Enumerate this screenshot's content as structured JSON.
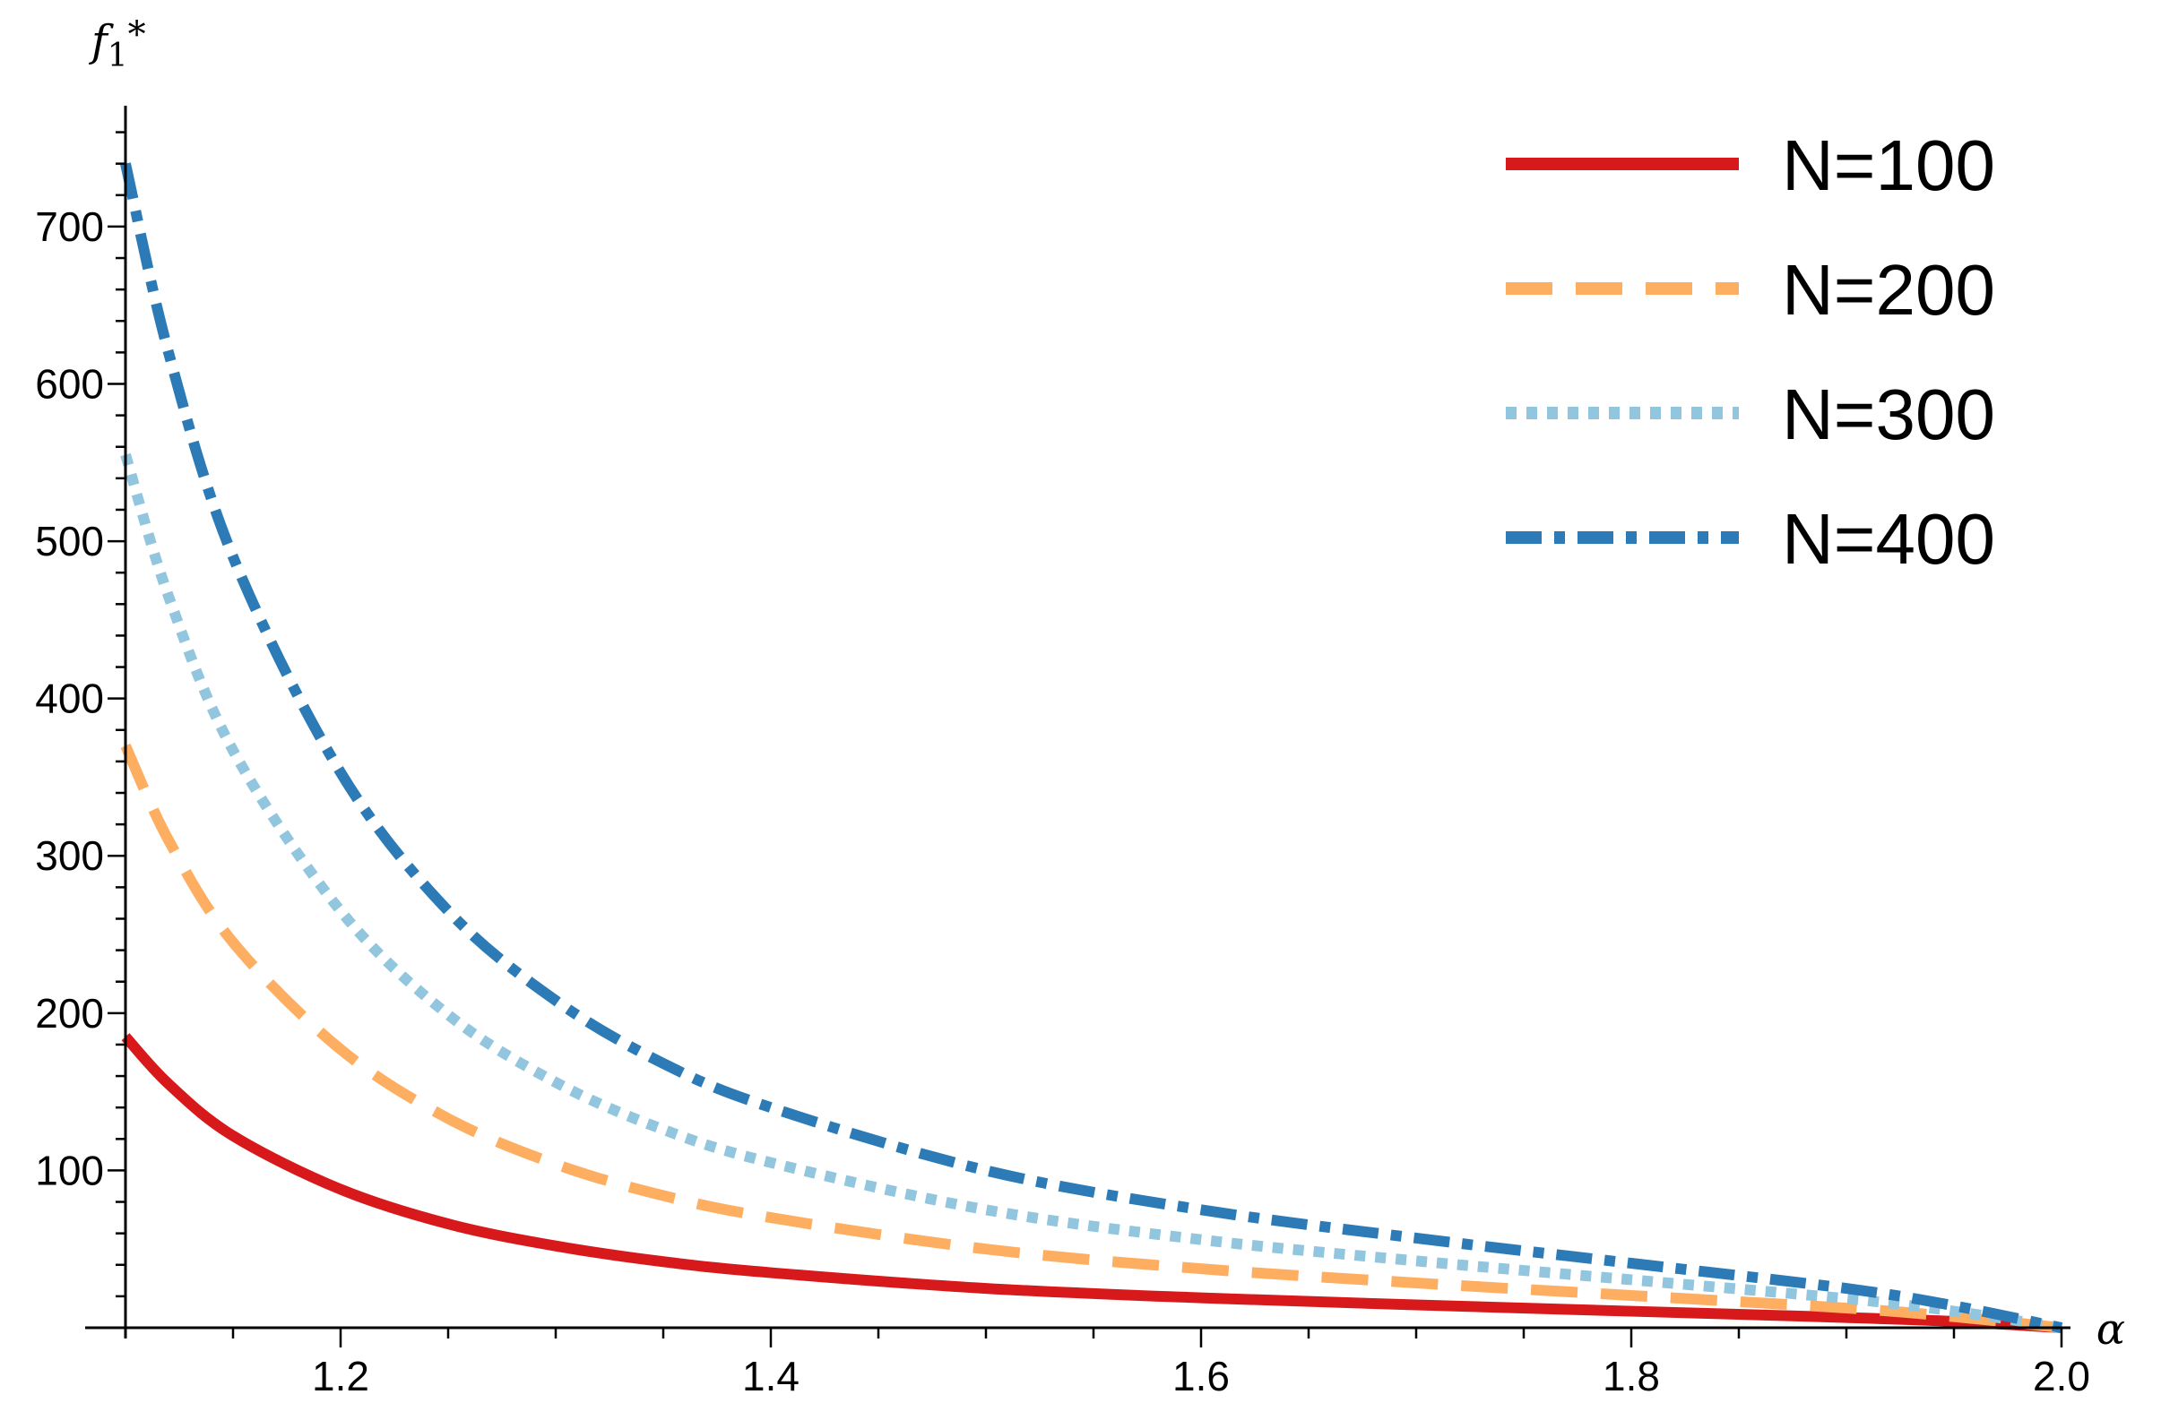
{
  "chart_data": {
    "type": "line",
    "title": "",
    "xlabel": "α",
    "ylabel_parts": {
      "base": "f",
      "sub": "1",
      "sup": "*"
    },
    "xlim": [
      1.1,
      2.0
    ],
    "ylim": [
      0,
      770
    ],
    "x_ticks": [
      1.2,
      1.4,
      1.6,
      1.8,
      2.0
    ],
    "x_tick_labels": [
      "1.2",
      "1.4",
      "1.6",
      "1.8",
      "2.0"
    ],
    "y_ticks": [
      100,
      200,
      300,
      400,
      500,
      600,
      700
    ],
    "y_tick_labels": [
      "100",
      "200",
      "300",
      "400",
      "500",
      "600",
      "700"
    ],
    "legend_position": "top-right",
    "x": [
      1.1,
      1.12,
      1.15,
      1.2,
      1.25,
      1.3,
      1.35,
      1.4,
      1.5,
      1.6,
      1.7,
      1.8,
      1.9,
      1.95,
      2.0
    ],
    "series": [
      {
        "name": "N=100",
        "color": "#d7191c",
        "style": "solid",
        "values": [
          185,
          155,
          122,
          88,
          66,
          52,
          42,
          35,
          25,
          19,
          14.5,
          10.5,
          6.5,
          4,
          0
        ]
      },
      {
        "name": "N=200",
        "color": "#fdae61",
        "style": "dashed",
        "values": [
          370,
          310,
          245,
          177,
          133,
          104,
          84,
          70,
          50,
          37.5,
          28.5,
          20.5,
          12.5,
          7,
          0
        ]
      },
      {
        "name": "N=300",
        "color": "#92c5de",
        "style": "dotted",
        "values": [
          555,
          465,
          367,
          265,
          199,
          156,
          126,
          105,
          75,
          56,
          42.5,
          30.5,
          18.5,
          10.5,
          0
        ]
      },
      {
        "name": "N=400",
        "color": "#2c7bb6",
        "style": "dashdot",
        "values": [
          740,
          620,
          490,
          353,
          265,
          208,
          168,
          140,
          100,
          75,
          57,
          41,
          25,
          14,
          0
        ]
      }
    ]
  }
}
